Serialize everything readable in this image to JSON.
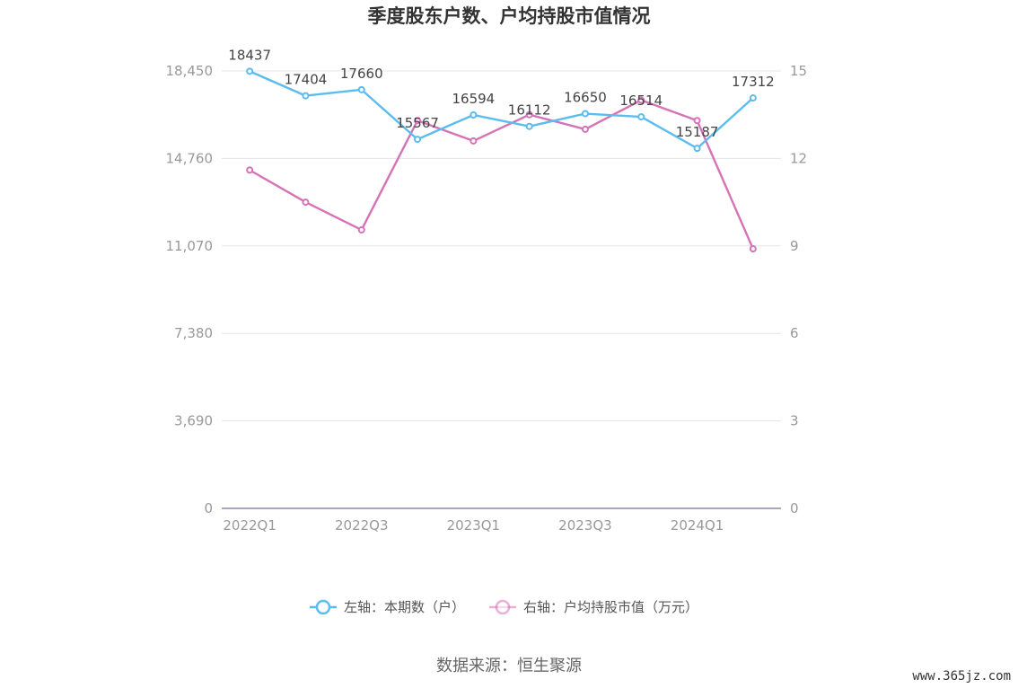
{
  "chart_data": {
    "type": "line",
    "title": "季度股东户数、户均持股市值情况",
    "categories": [
      "2022Q1",
      "2022Q2",
      "2022Q3",
      "2022Q4",
      "2023Q1",
      "2023Q2",
      "2023Q3",
      "2023Q4",
      "2024Q1",
      "2024Q2"
    ],
    "x_tick_labels": [
      "2022Q1",
      "2022Q3",
      "2023Q1",
      "2023Q3",
      "2024Q1"
    ],
    "left_axis": {
      "ticks": [
        "0",
        "3,690",
        "7,380",
        "11,070",
        "14,760",
        "18,450"
      ],
      "min": 0,
      "max": 18450
    },
    "right_axis": {
      "ticks": [
        "0",
        "3",
        "6",
        "9",
        "12",
        "15"
      ],
      "min": 0,
      "max": 15
    },
    "series": [
      {
        "name": "左轴：本期数（户）",
        "axis": "left",
        "color": "#5bbcf0",
        "values": [
          18437,
          17404,
          17660,
          15567,
          16594,
          16112,
          16650,
          16514,
          15187,
          17312
        ],
        "labels": [
          "18437",
          "17404",
          "17660",
          "15567",
          "16594",
          "16112",
          "16650",
          "16514",
          "15187",
          "17312"
        ]
      },
      {
        "name": "右轴：户均持股市值（万元）",
        "axis": "right",
        "color": "#d672b6",
        "values": [
          11.6,
          10.5,
          9.55,
          13.3,
          12.6,
          13.5,
          13.0,
          14.0,
          13.3,
          8.9
        ]
      }
    ],
    "legend_position": "bottom",
    "grid": true
  },
  "source": "数据来源：恒生聚源",
  "watermark": "www.365jz.com"
}
